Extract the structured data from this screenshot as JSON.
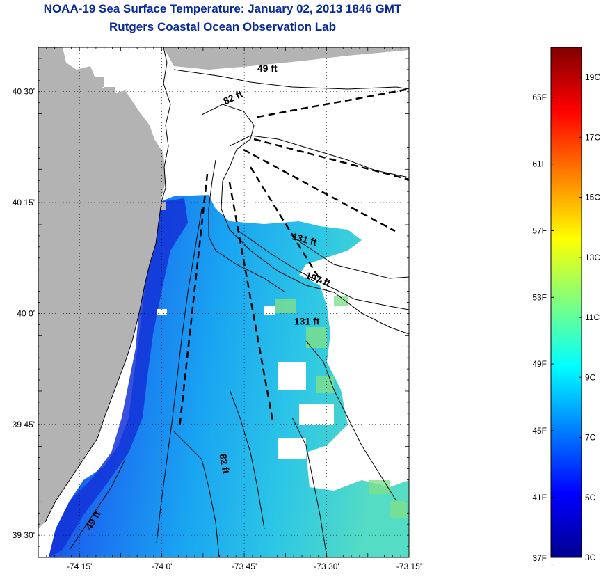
{
  "title_line1": "NOAA-19 Sea Surface Temperature:  January 02, 2013 1846 GMT",
  "title_line2": "Rutgers Coastal Ocean Observation Lab",
  "map": {
    "lon_range": [
      -74.375,
      -73.25
    ],
    "lat_range": [
      39.45,
      40.6
    ],
    "lon_ticks": [
      {
        "value": -74.25,
        "label": "-74 15'"
      },
      {
        "value": -74.0,
        "label": "-74 0'"
      },
      {
        "value": -73.75,
        "label": "-73 45'"
      },
      {
        "value": -73.5,
        "label": "-73 30'"
      },
      {
        "value": -73.25,
        "label": "-73 15'"
      }
    ],
    "lat_ticks": [
      {
        "value": 40.5,
        "label": "40 30'"
      },
      {
        "value": 40.25,
        "label": "40 15'"
      },
      {
        "value": 40.0,
        "label": "40 0'"
      },
      {
        "value": 39.75,
        "label": "39 45'"
      },
      {
        "value": 39.5,
        "label": "39 30'"
      }
    ],
    "isobath_labels": [
      {
        "text": "49 ft",
        "lon": -73.68,
        "lat": 40.545,
        "rotate": 0
      },
      {
        "text": "82 ft",
        "lon": -73.78,
        "lat": 40.48,
        "rotate": -25
      },
      {
        "text": "131 ft",
        "lon": -73.57,
        "lat": 40.16,
        "rotate": 15
      },
      {
        "text": "197 ft",
        "lon": -73.53,
        "lat": 40.07,
        "rotate": 20
      },
      {
        "text": "131 ft",
        "lon": -73.56,
        "lat": 39.975,
        "rotate": 0
      },
      {
        "text": "82 ft",
        "lon": -73.82,
        "lat": 39.66,
        "rotate": 80
      },
      {
        "text": "49 ft",
        "lon": -74.2,
        "lat": 39.53,
        "rotate": -60
      }
    ],
    "colors": {
      "land": "#b3b3b3",
      "cloud": "#ffffff",
      "sst_cool": "#1a4fe0",
      "sst_mid": "#1e9df0",
      "sst_warm": "#3fd8c8",
      "sst_green": "#8fe08a"
    }
  },
  "colorbar": {
    "range_c": [
      3,
      20
    ],
    "celsius_labels": [
      {
        "value": 3,
        "label": "3C"
      },
      {
        "value": 5,
        "label": "5C"
      },
      {
        "value": 7,
        "label": "7C"
      },
      {
        "value": 9,
        "label": "9C"
      },
      {
        "value": 11,
        "label": "11C"
      },
      {
        "value": 13,
        "label": "13C"
      },
      {
        "value": 15,
        "label": "15C"
      },
      {
        "value": 17,
        "label": "17C"
      },
      {
        "value": 19,
        "label": "19C"
      }
    ],
    "fahrenheit_labels": [
      {
        "value": 37,
        "label": "37F"
      },
      {
        "value": 41,
        "label": "41F"
      },
      {
        "value": 45,
        "label": "45F"
      },
      {
        "value": 49,
        "label": "49F"
      },
      {
        "value": 53,
        "label": "53F"
      },
      {
        "value": 57,
        "label": "57F"
      },
      {
        "value": 61,
        "label": "61F"
      },
      {
        "value": 65,
        "label": "65F"
      }
    ]
  }
}
